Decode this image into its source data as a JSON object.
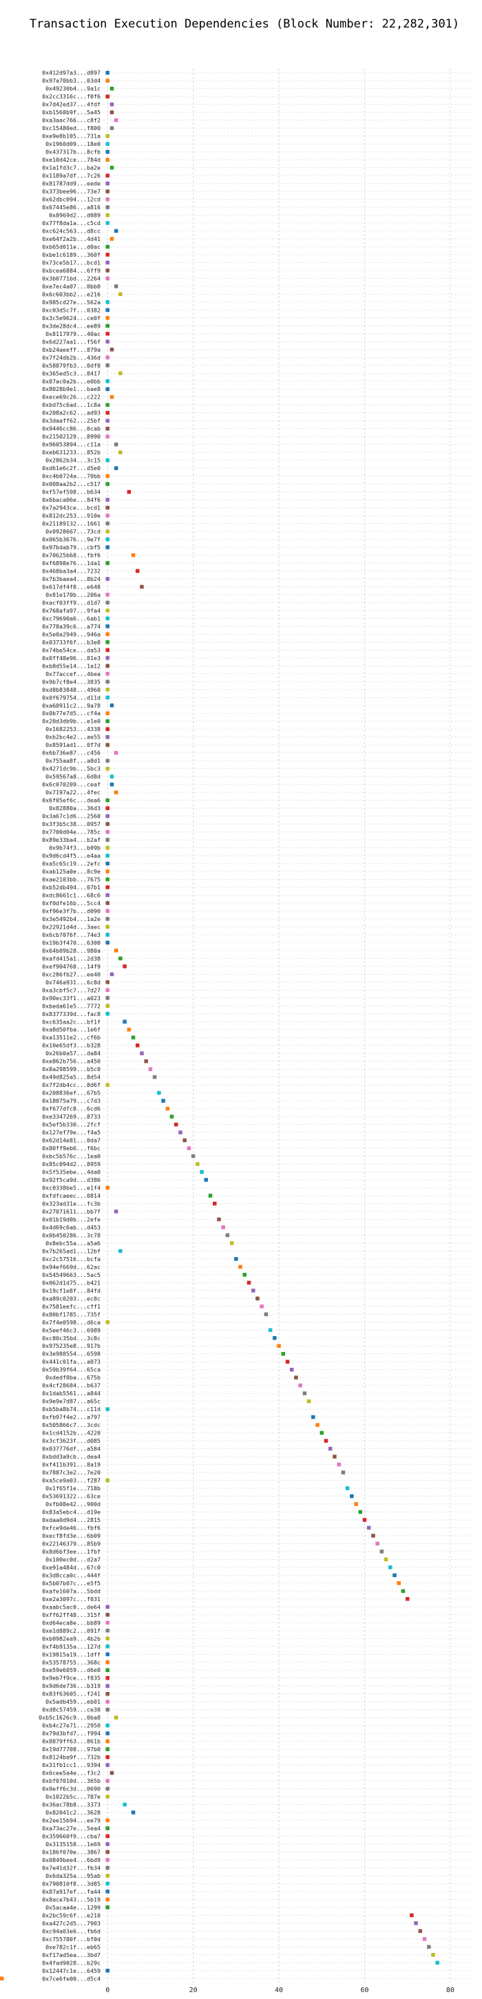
{
  "chart_data": {
    "type": "scatter",
    "title": "Transaction Execution Dependencies (Block Number: 22,282,301)",
    "xlabel": "",
    "ylabel": "",
    "xlim": [
      -1,
      85
    ],
    "x_ticks": [
      0,
      20,
      40,
      60,
      80
    ],
    "grid": true,
    "legend": "none",
    "palette": [
      "#1f77b4",
      "#ff7f0e",
      "#2ca02c",
      "#d62728",
      "#9467bd",
      "#8c564b",
      "#e377c2",
      "#7f7f7f",
      "#bcbd22",
      "#17becf"
    ],
    "y_labels": [
      "0x412d97a3...d897",
      "0x97a70bb3...03d4",
      "0x49230b4...9a1c",
      "0x2cc3316c...f0f6",
      "0x7d42ed37...4fdf",
      "0xb1560b9f...5a45",
      "0xa3aac766...c8f2",
      "0xc15480ed...f800",
      "0xe9e8b105...731a",
      "0x1960d09...18e0",
      "0x437317b...8cfb",
      "0xe10d42ce...784d",
      "0x1a1fd3c7...ba2e",
      "0x1189a7df...7c26",
      "0x81787dd9...eede",
      "0x373bee96...73e7",
      "0x62dbc094...12cd",
      "0x67445e86...a816",
      "0x8969d2...d089",
      "0x77f8da1a...c5cd",
      "0xc624c563...d8cc",
      "0xe64f2a2b...4d41",
      "0xb65d011e...d0ac",
      "0xbe1c6189...360f",
      "0x73ce5b17...bcd1",
      "0xbcea6884...6ff9",
      "0x3b0771bd...2264",
      "0xe7ec4a07...0bb0",
      "0x6c603bb2...e216",
      "0x985cd27e...562a",
      "0xc03d5c7f...0382",
      "0x3c5e9624...ce0f",
      "0x3de28dc4...ee89",
      "0x8117979...40ac",
      "0x6d227aa1...f56f",
      "0xb24aeeff...879a",
      "0x7f24db2b...436d",
      "0x58879fb3...0df0",
      "0x365ed5c3...8417",
      "0x87ac0a2b...e0bb",
      "0x8028b9e1...bae8",
      "0xece69c26...c222",
      "0xbd75c6ad...1c8a",
      "0x208a2c62...ad93",
      "0x3daaff62...25bf",
      "0x9446cc86...0cab",
      "0x21502129...8990",
      "0x96053894...c11a",
      "0xeb631233...852b",
      "0x2862b34...3c15",
      "0xd61e6c2f...d5e0",
      "0xc4b0724a...70bb",
      "0x008aa2b2...c517",
      "0xf57ef598...b634",
      "0x6baca06e...84f6",
      "0x7a2943ce...bcd1",
      "0x812dc253...910e",
      "0x21189132...1661",
      "0x0928667...73cd",
      "0x065b3676...9e7f",
      "0x97bdab79...cbf5",
      "0x70625b68...fbf6",
      "0xf6898e76...1da1",
      "0x468ba3a4...7232",
      "0x7b3baea4...8b24",
      "0x617df4f8...e648",
      "0x81e170b...206a",
      "0xacf03ff9...d1d7",
      "0x768afa97...9fa4",
      "0xc79690a6...6ab1",
      "0x778a39c6...a774",
      "0x5e0a2949...946a",
      "0x03733f6f...b3e8",
      "0x74be54ce...da53",
      "0x0ff48e96...81e3",
      "0xb8d55e14...1a12",
      "0x77accef...4bea",
      "0x9b7cf8e4...3835",
      "0xd8b83848...4960",
      "0x0f679754...d11d",
      "0xa60911c2...9a78",
      "0x0b77e7d5...cf4a",
      "0x20d3db9b...e1e0",
      "0x1682253...4338",
      "0xb2bc4e2...ae55",
      "0x8591ad1...0f7d",
      "0x6b736e87...c456",
      "0x755aa8f...a8d1",
      "0x4271dc9b...5bc3",
      "0x59567a8...6d8d",
      "0x6c070209...ceaf",
      "0x7197a22...4fec",
      "0x6f05ef6c...dea6",
      "0x82880a...36d3",
      "0x3a67c1d6...2560",
      "0x3f3b5c38...0957",
      "0x7700d04e...785c",
      "0x89e33ba4...b2af",
      "0x9b74f3...b09b",
      "0x9d6cd4f5...e4aa",
      "0xa5c65c19...2efc",
      "0xab125a0e...8c9e",
      "0xae2103bb...7675",
      "0xb52db494...07b1",
      "0xdc8661c1...68c6",
      "0xf0dfe16b...5cc4",
      "0xf96e3f7b...d090",
      "0x3e5492b4...1a2e",
      "0x22921d4d...3aec",
      "0x6cb7076f...74e3",
      "0x19b3f470...6300",
      "0x64b09b28...980a",
      "0xafd415a1...2d38",
      "0xef904768...14f9",
      "0xc286fb27...ee40",
      "0x746a931...6c8d",
      "0xa3cbf5c7...7d27",
      "0x90ec33f1...a023",
      "0xbeda61e5...7772",
      "0x8377339d...fac8",
      "0xc635aa2c...bf1f",
      "0xa8d50fba...1e6f",
      "0xa13511e2...cf6b",
      "0x10e65df3...b328",
      "0x26b0a57...da84",
      "0xe862b756...a450",
      "0x8a298599...b5c0",
      "0x49d825a5...8d54",
      "0x7f2db4cc...8d6f",
      "0x208836ef...67b5",
      "0x18075a79...c7d3",
      "0xf677dfc8...6cd6",
      "0xe3347269...8733",
      "0x5ef5b330...2fcf",
      "0x127ef79e...f4a5",
      "0x62d14e81...0da7",
      "0x80ff9eb6...f6bc",
      "0xbc5b576c...1ea0",
      "0x85c094d2...8959",
      "0x5f535ebe...4da0",
      "0x92f5ca9d...d386",
      "0xc0338be5...e1f4",
      "0xfdfcaeec...0814",
      "0x323ad31e...fc3b",
      "0x27071611...bb7f",
      "0x01b19d0b...2efe",
      "0x4d69c6ab...d453",
      "0x0b450286...3c78",
      "0x8ebc55a...a5a6",
      "0x7b265ad1...12bf",
      "0xc2c57516...bcfa",
      "0x94ef669d...62ac",
      "0x54549663...5ac5",
      "0x062d1d75...b421",
      "0x19cf1e8f...84fd",
      "0xa89c0203...ec8c",
      "0x7581eefc...cff1",
      "0x80bf1785...735f",
      "0x7f4e0598...d6ca",
      "0x5eef46c3...6989",
      "0xc80c35bd...3c8c",
      "0x975235e8...917b",
      "0x3e988554...6598",
      "0x441c01fa...a073",
      "0x59b39f64...65ca",
      "0xdedf0ba...675b",
      "0x4cf28684...b637",
      "0x1dab5561...a844",
      "0x9e9e7d87...a65c",
      "0xb5ba8b74...c11d",
      "0xfb97f4e2...a797",
      "0x505866c7...3cdc",
      "0x1cd4152b...4220",
      "0x3cf3623f...d085",
      "0x037776df...a584",
      "0xbdd3a9cb...dea4",
      "0xf411b391...8a19",
      "0x7887c3e2...7e20",
      "0xa5ce9a03...f287",
      "0x1f65f1e...718b",
      "0x53691322...63ce",
      "0xfb08e42...900d",
      "0x83a5ebc4...d19e",
      "0xdaa0d9d4...2815",
      "0xfce9de46...fbf6",
      "0xecf8fd3e...6b09",
      "0x22146379...85b9",
      "0x8d6bf3ee...1fbf",
      "0x100ec0d...d2a7",
      "0xe91a484d...67c0",
      "0x3d8cca0c...444f",
      "0x5b07b07c...e5f5",
      "0xafe1607a...5bdd",
      "0xe2a3097c...f031",
      "0xaabc5ac0...de64",
      "0xff62ff48...315f",
      "0xd64eca8e...bb89",
      "0xe1d889c2...091f",
      "0xb0982ea9...4b2b",
      "0xf4b9135a...127d",
      "0x19815a19...1dff",
      "0x53578755...368c",
      "0xe59e6059...d6e8",
      "0x9eb7f9ce...f835",
      "0x9d6de736...b319",
      "0x83f63605...f241",
      "0x5adb459...eb01",
      "0xd8c57459...ce38",
      "0xb5c1626c9...0ba8",
      "0xb4c27e71...2950",
      "0x79d3bfd7...f994",
      "0x8879ff63...861b",
      "0x19d77708...97b0",
      "0x8124ba9f...732b",
      "0x31fb1cc1...9394",
      "0x6cee5a4e...f3c2",
      "0xbf07010d...365b",
      "0x0eff6c3d...0690",
      "0x1022b5c...787e",
      "0x36ac78b8...3373",
      "0x82041c2...3628",
      "0x2ee15b94...ee79",
      "0xa73ac27e...5ea4",
      "0x359660f9...cba7",
      "0x3135158...1e69",
      "0x186f070e...3867",
      "0x0849bee4...6bd9",
      "0x7e41d32f...fb34",
      "0x6da325a...95ab",
      "0x790810f8...3d85",
      "0x87a917ef...fa44",
      "0x8ace7b43...5b19",
      "0x5acaa4e...1299",
      "0x2bc59c6f...e210",
      "0xa427c2d5...7903",
      "0xc94a03e6...fb6d",
      "0xc755780f...bf0d",
      "0xe782c1f...eb65",
      "0xf17ad5ea...3bd7",
      "0x4fad9028...b29c",
      "0x12447c1e...6459",
      "0x7ce6fe00...d5c4"
    ],
    "x": [
      0,
      0,
      1,
      0,
      1,
      1,
      2,
      1,
      0,
      0,
      0,
      0,
      1,
      0,
      0,
      0,
      0,
      0,
      0,
      0,
      2,
      1,
      0,
      0,
      0,
      0,
      0,
      2,
      3,
      0,
      0,
      0,
      0,
      0,
      0,
      1,
      0,
      0,
      3,
      0,
      0,
      1,
      0,
      0,
      0,
      0,
      0,
      2,
      3,
      0,
      2,
      0,
      0,
      5,
      0,
      0,
      0,
      0,
      0,
      0,
      0,
      6,
      0,
      7,
      0,
      8,
      0,
      0,
      0,
      0,
      0,
      0,
      0,
      0,
      0,
      0,
      0,
      0,
      0,
      0,
      1,
      0,
      0,
      0,
      0,
      0,
      2,
      0,
      0,
      1,
      1,
      2,
      0,
      0,
      0,
      0,
      0,
      0,
      0,
      0,
      0,
      0,
      0,
      0,
      0,
      0,
      0,
      0,
      0,
      0,
      0,
      2,
      3,
      4,
      1,
      0,
      0,
      0,
      0,
      0,
      4,
      5,
      6,
      7,
      8,
      9,
      10,
      11,
      0,
      12,
      13,
      14,
      15,
      16,
      17,
      18,
      19,
      20,
      21,
      22,
      23,
      0,
      24,
      25,
      2,
      26,
      27,
      28,
      29,
      3,
      30,
      31,
      32,
      33,
      34,
      35,
      36,
      37,
      0,
      38,
      39,
      40,
      41,
      42,
      43,
      44,
      45,
      46,
      47,
      0,
      48,
      49,
      50,
      51,
      52,
      53,
      54,
      55,
      0,
      56,
      57,
      58,
      59,
      60,
      61,
      62,
      63,
      64,
      65,
      66,
      67,
      68,
      69,
      70,
      0,
      0,
      0,
      0,
      0,
      0,
      0,
      0,
      0,
      0,
      0,
      0,
      0,
      0,
      2,
      0,
      0,
      0,
      0,
      0,
      0,
      1,
      0,
      0,
      0,
      4,
      6,
      0,
      0,
      0,
      0,
      0,
      0,
      0,
      0,
      0,
      0,
      0,
      0,
      71,
      72,
      73,
      74,
      75,
      76,
      77,
      0
    ],
    "colors": [
      0,
      1,
      2,
      3,
      4,
      5,
      6,
      7,
      8,
      9,
      0,
      1,
      2,
      3,
      4,
      5,
      6,
      7,
      8,
      9,
      0,
      1,
      2,
      3,
      4,
      5,
      6,
      7,
      8,
      9,
      0,
      1,
      2,
      3,
      4,
      5,
      6,
      7,
      8,
      9,
      0,
      1,
      2,
      3,
      4,
      5,
      6,
      7,
      8,
      9,
      0,
      1,
      2,
      3,
      4,
      5,
      6,
      7,
      8,
      9,
      0,
      1,
      2,
      3,
      4,
      5,
      6,
      7,
      8,
      9,
      0,
      1,
      2,
      3,
      4,
      5,
      6,
      7,
      8,
      9,
      0,
      1,
      2,
      3,
      4,
      5,
      6,
      7,
      8,
      9,
      0,
      1,
      2,
      3,
      4,
      5,
      6,
      7,
      8,
      9,
      0,
      1,
      2,
      3,
      4,
      5,
      6,
      7,
      8,
      9,
      0,
      1,
      2,
      3,
      4,
      5,
      6,
      7,
      8,
      9,
      0,
      1,
      2,
      3,
      4,
      5,
      6,
      7,
      8,
      9,
      0,
      1,
      2,
      3,
      4,
      5,
      6,
      7,
      8,
      9,
      0,
      1,
      2,
      3,
      4,
      5,
      6,
      7,
      8,
      9,
      0,
      1,
      2,
      3,
      4,
      5,
      6,
      7,
      8,
      9,
      0,
      1,
      2,
      3,
      4,
      5,
      6,
      7,
      8,
      9,
      0,
      1,
      2,
      3,
      4,
      5,
      6,
      7,
      8,
      9,
      0,
      1,
      2,
      3,
      4,
      5,
      6,
      7,
      8,
      9,
      0,
      1,
      2,
      3,
      4,
      5,
      6,
      7,
      8,
      9,
      0,
      1,
      2,
      3,
      4,
      5,
      6,
      7,
      8,
      9,
      0,
      1,
      2,
      3,
      4,
      5,
      6,
      7,
      8,
      9,
      0,
      1,
      2,
      3,
      4,
      5,
      6,
      7,
      8,
      9,
      0,
      1,
      2,
      3,
      4,
      5,
      6,
      7,
      8,
      9,
      0,
      1,
      2,
      3,
      4,
      5,
      6,
      7,
      8,
      9,
      0,
      1,
      2,
      3,
      4,
      5,
      6,
      7,
      8,
      9,
      0,
      1,
      2,
      3,
      4,
      5,
      6
    ]
  }
}
